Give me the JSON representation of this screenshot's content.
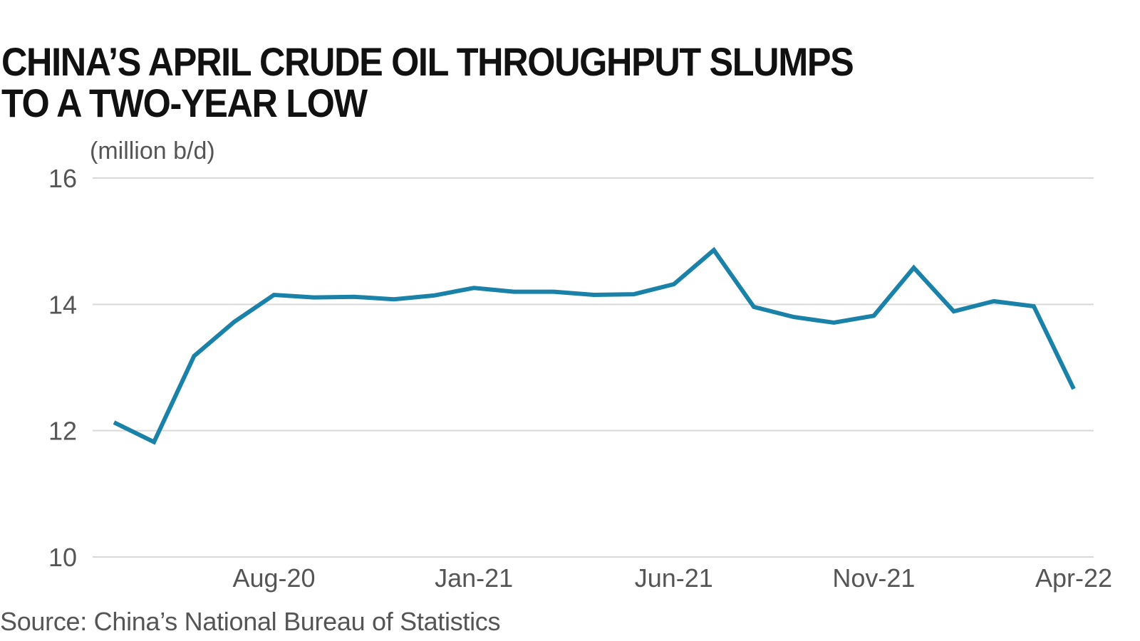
{
  "title": "CHINA’S APRIL CRUDE OIL THROUGHPUT SLUMPS TO A TWO-YEAR LOW",
  "source": "Source: China’s National Bureau of Statistics",
  "colors": {
    "line": "#1a82a8",
    "grid": "#d9d9d9",
    "text": "#555555",
    "title": "#111111"
  },
  "chart_data": {
    "type": "line",
    "ylabel": "(million b/d)",
    "ylim": [
      10,
      16
    ],
    "yticks": [
      10,
      12,
      14,
      16
    ],
    "grid": "horizontal",
    "x": [
      "Apr-20",
      "May-20",
      "Jun-20",
      "Jul-20",
      "Aug-20",
      "Sep-20",
      "Oct-20",
      "Nov-20",
      "Dec-20",
      "Jan-21",
      "Feb-21",
      "Mar-21",
      "Apr-21",
      "May-21",
      "Jun-21",
      "Jul-21",
      "Aug-21",
      "Sep-21",
      "Oct-21",
      "Nov-21",
      "Dec-21",
      "Jan-22",
      "Feb-22",
      "Mar-22",
      "Apr-22"
    ],
    "xtick_labels": [
      "Aug-20",
      "Jan-21",
      "Jun-21",
      "Nov-21",
      "Apr-22"
    ],
    "series": [
      {
        "values": [
          12.13,
          11.82,
          13.18,
          13.72,
          14.15,
          14.11,
          14.12,
          14.08,
          14.14,
          14.26,
          14.2,
          14.2,
          14.15,
          14.16,
          14.32,
          14.86,
          13.96,
          13.8,
          13.71,
          13.82,
          14.58,
          13.89,
          14.05,
          13.97,
          12.66
        ]
      }
    ]
  }
}
